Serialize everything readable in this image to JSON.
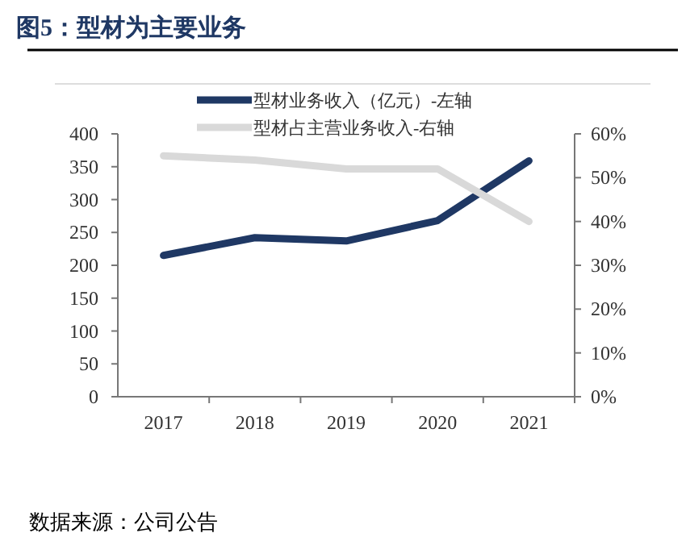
{
  "chart_data": {
    "type": "line",
    "title": "图5：型材为主要业务",
    "categories": [
      "2017",
      "2018",
      "2019",
      "2020",
      "2021"
    ],
    "series": [
      {
        "name": "型材业务收入（亿元）-左轴",
        "color": "#1f3864",
        "values": [
          215,
          242,
          237,
          268,
          359
        ]
      },
      {
        "name": "型材占主营业务收入-右轴",
        "color": "#d9d9d9",
        "values": [
          55,
          54,
          52,
          52,
          40
        ],
        "axis": "y2"
      }
    ],
    "ylim": [
      0,
      400
    ],
    "yticks": [
      0,
      50,
      100,
      150,
      200,
      250,
      300,
      350,
      400
    ],
    "y2lim": [
      0,
      60
    ],
    "y2ticks": [
      {
        "value": 0,
        "label": "0%"
      },
      {
        "value": 10,
        "label": "10%"
      },
      {
        "value": 20,
        "label": "20%"
      },
      {
        "value": 30,
        "label": "30%"
      },
      {
        "value": 40,
        "label": "40%"
      },
      {
        "value": 50,
        "label": "50%"
      },
      {
        "value": 60,
        "label": "60%"
      }
    ],
    "legend": "top",
    "grid": false,
    "marker": "none",
    "line_style": "solid",
    "annotations": [
      "数据来源：公司公告"
    ]
  }
}
